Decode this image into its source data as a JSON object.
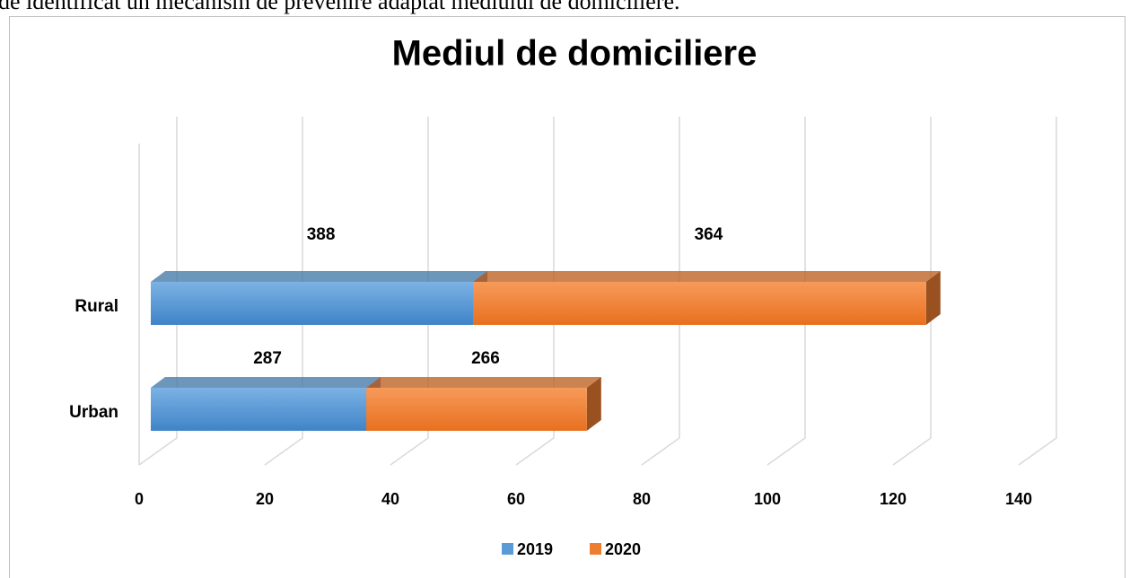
{
  "header_text": "de identificat un mecanism de prevenire adaptat mediului de domiciliere.",
  "chart_data": {
    "type": "bar",
    "orientation": "horizontal",
    "stacked": true,
    "three_d": true,
    "title": "Mediul de domiciliere",
    "categories": [
      "Urban",
      "Rural"
    ],
    "series": [
      {
        "name": "2019",
        "color": "#5b9bd5",
        "values": [
          34.3,
          51.3
        ],
        "annotations": [
          "287",
          "388"
        ]
      },
      {
        "name": "2020",
        "color": "#ed7d31",
        "values": [
          35.1,
          72.1
        ],
        "annotations": [
          "266",
          "364"
        ]
      }
    ],
    "xlim": [
      0,
      140
    ],
    "xticks": [
      0,
      20,
      40,
      60,
      80,
      100,
      120,
      140
    ],
    "grid": true,
    "legend": "bottom"
  }
}
